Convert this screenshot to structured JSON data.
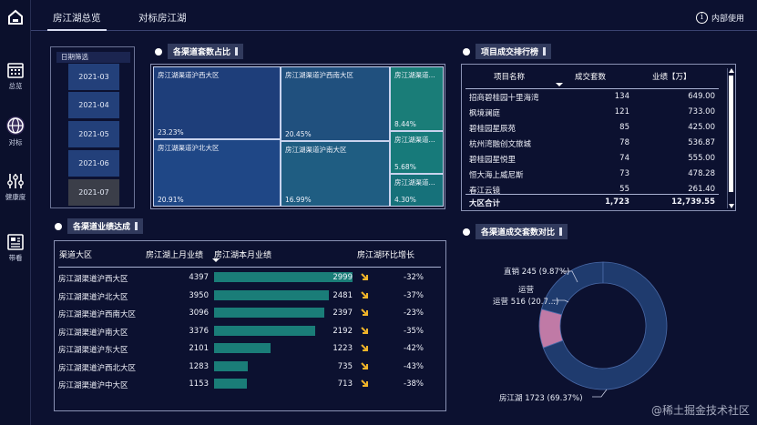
{
  "nav": {
    "tabs": [
      {
        "label": "房江湖总览"
      },
      {
        "label": "对标房江湖"
      }
    ],
    "intro_label": "内部使用",
    "intro_icon": "info-icon"
  },
  "rail": {
    "items": [
      {
        "label": "总览",
        "icon": "calendar-icon"
      },
      {
        "label": "对标",
        "icon": "globe-icon"
      },
      {
        "label": "健康度",
        "icon": "sliders-icon"
      },
      {
        "label": "带看",
        "icon": "news-icon"
      }
    ]
  },
  "date_filter": {
    "title": "日期筛选",
    "options": [
      "2021-03",
      "2021-04",
      "2021-05",
      "2021-06",
      "2021-07"
    ],
    "selected": "2021-07"
  },
  "treemap": {
    "title": "各渠道套数占比",
    "cells": [
      {
        "label": "房江湖渠道沪西大区",
        "pct": "23.23%"
      },
      {
        "label": "房江湖渠道沪北大区",
        "pct": "20.91%"
      },
      {
        "label": "房江湖渠道沪西南大区",
        "pct": "20.45%"
      },
      {
        "label": "房江湖渠道沪南大区",
        "pct": "16.99%"
      },
      {
        "label": "房江湖渠道...",
        "pct": "8.44%"
      },
      {
        "label": "房江湖渠道...",
        "pct": "5.68%"
      },
      {
        "label": "房江湖渠道...",
        "pct": "4.30%"
      }
    ]
  },
  "ranking": {
    "title": "项目成交排行榜",
    "headers": [
      "项目名称",
      "成交套数",
      "业绩【万】"
    ],
    "rows": [
      {
        "name": "招商碧桂园十里海湾",
        "count": "134",
        "perf": "649.00"
      },
      {
        "name": "枫境澜庭",
        "count": "121",
        "perf": "733.00"
      },
      {
        "name": "碧桂园星辰苑",
        "count": "85",
        "perf": "425.00"
      },
      {
        "name": "杭州湾融创文旅城",
        "count": "78",
        "perf": "536.87"
      },
      {
        "name": "碧桂园星悦里",
        "count": "74",
        "perf": "555.00"
      },
      {
        "name": "恒大海上威尼斯",
        "count": "73",
        "perf": "478.28"
      },
      {
        "name": "春江云镜",
        "count": "55",
        "perf": "261.40"
      }
    ],
    "total": {
      "name": "大区合计",
      "count": "1,723",
      "perf": "12,739.55"
    }
  },
  "performance": {
    "title": "各渠道业绩达成",
    "headers": [
      "渠道大区",
      "房江湖上月业绩",
      "房江湖本月业绩",
      "房江湖环比增长"
    ],
    "max_current": 2999,
    "rows": [
      {
        "name": "房江湖渠道沪西大区",
        "last": "4397",
        "cur": 2999,
        "cur_label": "2999",
        "chg": "-32%"
      },
      {
        "name": "房江湖渠道沪北大区",
        "last": "3950",
        "cur": 2481,
        "cur_label": "2481",
        "chg": "-37%"
      },
      {
        "name": "房江湖渠道沪西南大区",
        "last": "3096",
        "cur": 2397,
        "cur_label": "2397",
        "chg": "-23%"
      },
      {
        "name": "房江湖渠道沪南大区",
        "last": "3376",
        "cur": 2192,
        "cur_label": "2192",
        "chg": "-35%"
      },
      {
        "name": "房江湖渠道沪东大区",
        "last": "2101",
        "cur": 1223,
        "cur_label": "1223",
        "chg": "-42%"
      },
      {
        "name": "房江湖渠道沪西北大区",
        "last": "1283",
        "cur": 735,
        "cur_label": "735",
        "chg": "-43%"
      },
      {
        "name": "房江湖渠道沪中大区",
        "last": "1153",
        "cur": 713,
        "cur_label": "713",
        "chg": "-38%"
      }
    ],
    "down_arrow_color": "#f0b429",
    "bar_color": "#1a7d78"
  },
  "donut": {
    "title": "各渠道成交套数对比",
    "slices": [
      {
        "label": "房江湖 1723 (69.37%)",
        "value": 1723,
        "color": "#1f3b6e"
      },
      {
        "label": "运营 516 (20.7...)",
        "value": 516,
        "color": "#1f3b6e"
      },
      {
        "label": "直销 245 (9.87%)",
        "value": 245,
        "color": "#c07aa6"
      }
    ]
  },
  "watermark": "@稀土掘金技术社区"
}
